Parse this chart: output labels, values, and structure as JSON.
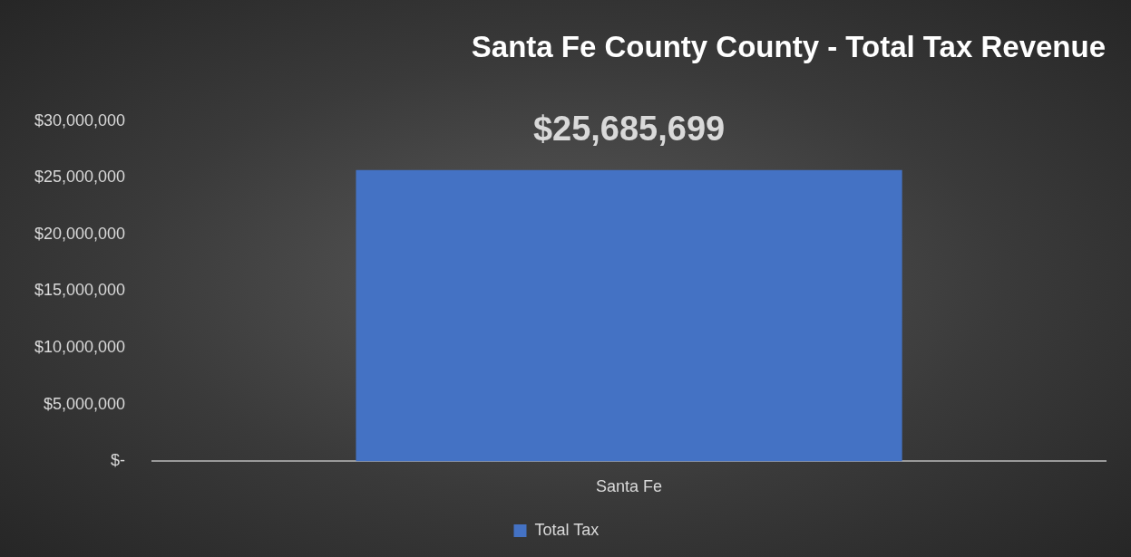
{
  "chart_data": {
    "type": "bar",
    "title": "Santa Fe County County - Total Tax Revenue",
    "categories": [
      "Santa Fe"
    ],
    "series": [
      {
        "name": "Total Tax",
        "color": "#4472c4",
        "values": [
          25685699
        ],
        "value_labels": [
          "$25,685,699"
        ]
      }
    ],
    "ylim": [
      0,
      30000000
    ],
    "yticks": [
      {
        "value": 0,
        "label": "$-"
      },
      {
        "value": 5000000,
        "label": "$5,000,000"
      },
      {
        "value": 10000000,
        "label": "$10,000,000"
      },
      {
        "value": 15000000,
        "label": "$15,000,000"
      },
      {
        "value": 20000000,
        "label": "$20,000,000"
      },
      {
        "value": 25000000,
        "label": "$25,000,000"
      },
      {
        "value": 30000000,
        "label": "$30,000,000"
      }
    ],
    "grid": false,
    "legend": "bottom"
  }
}
